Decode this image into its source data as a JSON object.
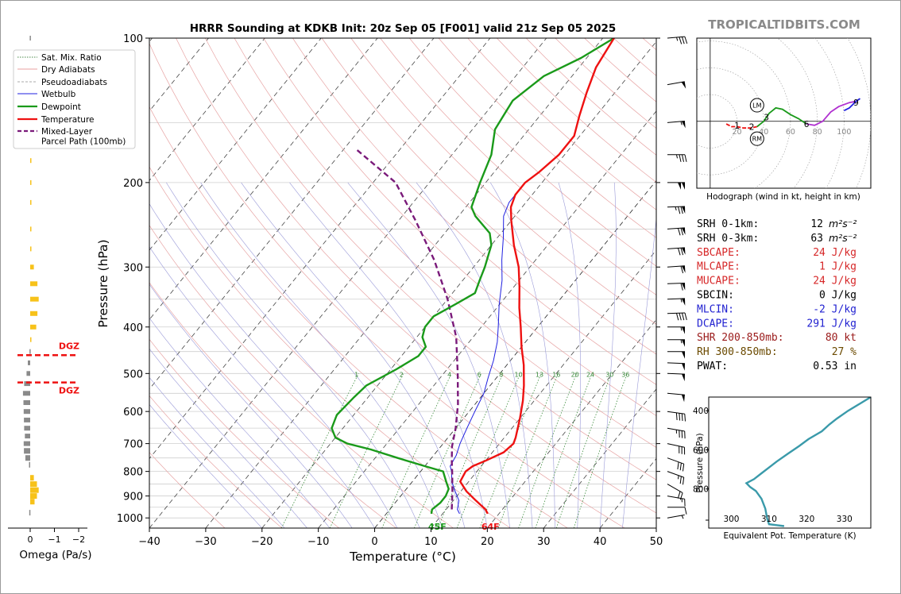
{
  "header": {
    "title": "HRRR Sounding at KDKB Init: 20z Sep 05 [F001] valid 21z Sep 05 2025",
    "brand": "TROPICALTIDBITS.COM"
  },
  "legend": {
    "items": [
      {
        "label": "Sat. Mix. Ratio",
        "color": "#4a8a4a",
        "style": "dotted"
      },
      {
        "label": "Dry Adiabats",
        "color": "#e8a0a0",
        "style": "solid"
      },
      {
        "label": "Pseudoadiabats",
        "color": "#aaaaaa",
        "style": "dashed"
      },
      {
        "label": "Wetbulb",
        "color": "#1f1fe0",
        "style": "solid"
      },
      {
        "label": "Dewpoint",
        "color": "#1a9a1a",
        "style": "solid"
      },
      {
        "label": "Temperature",
        "color": "#ee1111",
        "style": "solid"
      },
      {
        "label": "Mixed-Layer\nParcel Path (100mb)",
        "color": "#7a1a7a",
        "style": "dashed"
      }
    ]
  },
  "omega": {
    "xlabel": "Omega (Pa/s)",
    "ticks": [
      "0",
      "−1",
      "−2"
    ],
    "dgz_label": "DGZ",
    "dgz_top_hpa": 458,
    "dgz_bottom_hpa": 522,
    "xlim": [
      0.3,
      -2.2
    ],
    "bars": [
      {
        "p": 100,
        "v": 0.02
      },
      {
        "p": 120,
        "v": 0.02
      },
      {
        "p": 150,
        "v": 0.02
      },
      {
        "p": 180,
        "v": -0.01
      },
      {
        "p": 200,
        "v": -0.03
      },
      {
        "p": 220,
        "v": -0.04
      },
      {
        "p": 250,
        "v": -0.03
      },
      {
        "p": 275,
        "v": -0.03
      },
      {
        "p": 300,
        "v": -0.15
      },
      {
        "p": 325,
        "v": -0.3
      },
      {
        "p": 350,
        "v": -0.35
      },
      {
        "p": 375,
        "v": -0.3
      },
      {
        "p": 400,
        "v": -0.25
      },
      {
        "p": 425,
        "v": -0.05
      },
      {
        "p": 450,
        "v": 0.03
      },
      {
        "p": 475,
        "v": 0.1
      },
      {
        "p": 500,
        "v": 0.15
      },
      {
        "p": 525,
        "v": 0.25
      },
      {
        "p": 550,
        "v": 0.3
      },
      {
        "p": 575,
        "v": 0.28
      },
      {
        "p": 600,
        "v": 0.27
      },
      {
        "p": 625,
        "v": 0.26
      },
      {
        "p": 650,
        "v": 0.25
      },
      {
        "p": 675,
        "v": 0.22
      },
      {
        "p": 700,
        "v": 0.27
      },
      {
        "p": 725,
        "v": 0.26
      },
      {
        "p": 750,
        "v": 0.2
      },
      {
        "p": 775,
        "v": 0.05
      },
      {
        "p": 825,
        "v": -0.15
      },
      {
        "p": 850,
        "v": -0.28
      },
      {
        "p": 875,
        "v": -0.35
      },
      {
        "p": 900,
        "v": -0.28
      },
      {
        "p": 925,
        "v": -0.18
      },
      {
        "p": 975,
        "v": 0.04
      }
    ]
  },
  "chart_data": [
    {
      "type": "line",
      "title": "HRRR Sounding at KDKB Init: 20z Sep 05 [F001] valid 21z Sep 05 2025",
      "xlabel": "Temperature (°C)",
      "ylabel": "Pressure (hPa)",
      "xlim": [
        -40,
        50
      ],
      "ylim": [
        1050,
        100
      ],
      "xticks": [
        -40,
        -30,
        -20,
        -10,
        0,
        10,
        20,
        30,
        40,
        50
      ],
      "yticks": [
        100,
        200,
        300,
        400,
        500,
        600,
        700,
        800,
        900,
        1000
      ],
      "y_scale": "log",
      "skew": "skew-T",
      "mix_ratio_labels": [
        "1",
        "2",
        "4",
        "6",
        "8",
        "10",
        "13",
        "16",
        "20",
        "24",
        "30",
        "36"
      ],
      "surface_labels": {
        "temperature": "64F",
        "dewpoint": "45F"
      },
      "series": [
        {
          "name": "Temperature",
          "color": "#ee1111",
          "points": [
            [
              18.0,
              980
            ],
            [
              17.0,
              960
            ],
            [
              14.0,
              920
            ],
            [
              11.0,
              880
            ],
            [
              8.5,
              840
            ],
            [
              8.0,
              800
            ],
            [
              8.5,
              780
            ],
            [
              10.0,
              760
            ],
            [
              12.0,
              730
            ],
            [
              12.5,
              700
            ],
            [
              12.0,
              680
            ],
            [
              10.0,
              620
            ],
            [
              8.0,
              570
            ],
            [
              6.0,
              530
            ],
            [
              3.0,
              480
            ],
            [
              0.0,
              440
            ],
            [
              -3.0,
              400
            ],
            [
              -6.0,
              365
            ],
            [
              -9.0,
              330
            ],
            [
              -12.0,
              300
            ],
            [
              -16.0,
              270
            ],
            [
              -20.0,
              240
            ],
            [
              -22.0,
              225
            ],
            [
              -23.0,
              212
            ],
            [
              -23.0,
              200
            ],
            [
              -22.0,
              190
            ],
            [
              -21.0,
              175
            ],
            [
              -21.0,
              160
            ],
            [
              -23.0,
              145
            ],
            [
              -25.0,
              130
            ],
            [
              -27.0,
              115
            ],
            [
              -28.0,
              100
            ]
          ]
        },
        {
          "name": "Dewpoint",
          "color": "#1a9a1a",
          "points": [
            [
              8.0,
              980
            ],
            [
              7.5,
              960
            ],
            [
              8.0,
              930
            ],
            [
              8.0,
              900
            ],
            [
              7.5,
              870
            ],
            [
              6.0,
              840
            ],
            [
              4.0,
              800
            ],
            [
              0.0,
              780
            ],
            [
              -6.0,
              750
            ],
            [
              -12.0,
              720
            ],
            [
              -17.0,
              700
            ],
            [
              -20.0,
              680
            ],
            [
              -22.0,
              650
            ],
            [
              -23.0,
              610
            ],
            [
              -22.5,
              560
            ],
            [
              -22.0,
              530
            ],
            [
              -19.0,
              490
            ],
            [
              -17.0,
              460
            ],
            [
              -17.0,
              440
            ],
            [
              -19.0,
              420
            ],
            [
              -20.0,
              400
            ],
            [
              -20.0,
              380
            ],
            [
              -18.0,
              360
            ],
            [
              -16.0,
              340
            ],
            [
              -17.0,
              320
            ],
            [
              -18.0,
              300
            ],
            [
              -20.0,
              270
            ],
            [
              -22.0,
              255
            ],
            [
              -27.0,
              235
            ],
            [
              -29.0,
              225
            ],
            [
              -31.0,
              200
            ],
            [
              -33.0,
              175
            ],
            [
              -36.0,
              155
            ],
            [
              -37.0,
              135
            ],
            [
              -35.0,
              120
            ],
            [
              -31.0,
              110
            ],
            [
              -28.0,
              100
            ]
          ]
        },
        {
          "name": "Wetbulb",
          "color": "#1f1fe0",
          "points": [
            [
              13.0,
              980
            ],
            [
              12.0,
              960
            ],
            [
              11.0,
              920
            ],
            [
              9.0,
              880
            ],
            [
              7.0,
              840
            ],
            [
              5.5,
              800
            ],
            [
              4.5,
              780
            ],
            [
              4.0,
              740
            ],
            [
              3.0,
              700
            ],
            [
              2.0,
              650
            ],
            [
              1.0,
              600
            ],
            [
              0.0,
              550
            ],
            [
              -1.5,
              510
            ],
            [
              -3.0,
              470
            ],
            [
              -5.0,
              430
            ],
            [
              -7.0,
              400
            ],
            [
              -10.0,
              360
            ],
            [
              -13.0,
              320
            ],
            [
              -16.0,
              290
            ],
            [
              -19.0,
              260
            ],
            [
              -22.0,
              235
            ],
            [
              -23.0,
              220
            ],
            [
              -23.0,
              200
            ],
            [
              -22.0,
              190
            ],
            [
              -21.0,
              175
            ],
            [
              -21.0,
              160
            ],
            [
              -23.0,
              145
            ],
            [
              -25.0,
              130
            ],
            [
              -27.0,
              115
            ],
            [
              -28.0,
              100
            ]
          ]
        },
        {
          "name": "Mixed-Layer Parcel Path (100mb)",
          "color": "#7a1a7a",
          "points": [
            [
              11.0,
              960
            ],
            [
              8.5,
              880
            ],
            [
              6.0,
              810
            ],
            [
              4.0,
              760
            ],
            [
              2.0,
              710
            ],
            [
              0.0,
              650
            ],
            [
              -3.0,
              580
            ],
            [
              -7.5,
              500
            ],
            [
              -13.0,
              420
            ],
            [
              -20.0,
              350
            ],
            [
              -28.0,
              290
            ],
            [
              -37.0,
              240
            ],
            [
              -46.0,
              200
            ],
            [
              -58.0,
              170
            ]
          ]
        }
      ]
    },
    {
      "type": "line",
      "title": "Hodograph (wind in kt, height in km)",
      "xlim": [
        -10,
        120
      ],
      "ylim": [
        -50,
        55
      ],
      "ring_labels": [
        "20",
        "40",
        "60",
        "80",
        "100"
      ],
      "markers": {
        "LM": [
          35,
          12
        ],
        "RM": [
          35,
          -13
        ]
      },
      "height_labels": [
        {
          "label": "1",
          "u": 20,
          "v": -3
        },
        {
          "label": "2",
          "u": 31,
          "v": -4
        },
        {
          "label": "3",
          "u": 42,
          "v": 3
        },
        {
          "label": "6",
          "u": 72,
          "v": -2
        },
        {
          "label": "9",
          "u": 109,
          "v": 14
        }
      ],
      "series": [
        {
          "name": "0-1 km",
          "color": "#ee1111",
          "points": [
            [
              12,
              -2
            ],
            [
              16,
              -4
            ],
            [
              20,
              -4
            ],
            [
              25,
              -5
            ],
            [
              30,
              -5
            ],
            [
              35,
              -4
            ]
          ]
        },
        {
          "name": "1-3 km",
          "color": "#1a9a1a",
          "points": [
            [
              35,
              -4
            ],
            [
              40,
              0
            ],
            [
              44,
              6
            ],
            [
              49,
              10
            ],
            [
              54,
              9
            ],
            [
              60,
              5
            ],
            [
              66,
              2
            ],
            [
              72,
              -2
            ]
          ]
        },
        {
          "name": "3-6 km",
          "color": "#b030d0",
          "points": [
            [
              72,
              -2
            ],
            [
              78,
              -3
            ],
            [
              84,
              0
            ],
            [
              90,
              7
            ],
            [
              96,
              11
            ],
            [
              104,
              14
            ],
            [
              109,
              15
            ]
          ]
        },
        {
          "name": "6-9 km",
          "color": "#2020e0",
          "points": [
            [
              100,
              8
            ],
            [
              104,
              10
            ],
            [
              109,
              15
            ],
            [
              112,
              17
            ]
          ]
        }
      ]
    },
    {
      "type": "line",
      "title": "",
      "xlabel": "Equivalent Pot. Temperature (K)",
      "ylabel": "Pressure (hPa)",
      "xlim": [
        294,
        337
      ],
      "ylim": [
        1000,
        330
      ],
      "xticks": [
        300,
        310,
        320,
        330
      ],
      "yticks": [
        400,
        600,
        800
      ],
      "series": [
        {
          "name": "Theta-e",
          "color": "#3a9aaa",
          "points": [
            [
              314,
              990
            ],
            [
              312,
              985
            ],
            [
              310,
              980
            ],
            [
              309.5,
              950
            ],
            [
              309,
              900
            ],
            [
              308,
              850
            ],
            [
              306.5,
              810
            ],
            [
              305,
              790
            ],
            [
              304,
              770
            ],
            [
              306,
              750
            ],
            [
              308,
              720
            ],
            [
              310,
              690
            ],
            [
              312,
              660
            ],
            [
              315,
              620
            ],
            [
              318,
              580
            ],
            [
              320.5,
              545
            ],
            [
              324,
              505
            ],
            [
              326,
              470
            ],
            [
              328,
              440
            ],
            [
              331,
              400
            ],
            [
              334,
              365
            ],
            [
              337,
              330
            ]
          ]
        }
      ]
    }
  ],
  "stats": [
    {
      "label": "SRH 0-1km:",
      "value": "12",
      "unit": "m²s⁻²",
      "color": "#000000"
    },
    {
      "label": "SRH 0-3km:",
      "value": "63",
      "unit": "m²s⁻²",
      "color": "#000000"
    },
    {
      "label": "SBCAPE:",
      "value": "24 J/kg",
      "unit": "",
      "color": "#d62728"
    },
    {
      "label": "MLCAPE:",
      "value": "1 J/kg",
      "unit": "",
      "color": "#d62728"
    },
    {
      "label": "MUCAPE:",
      "value": "24 J/kg",
      "unit": "",
      "color": "#d62728"
    },
    {
      "label": "SBCIN:",
      "value": "0 J/kg",
      "unit": "",
      "color": "#000000"
    },
    {
      "label": "MLCIN:",
      "value": "-2 J/kg",
      "unit": "",
      "color": "#1f1fd0"
    },
    {
      "label": "DCAPE:",
      "value": "291 J/kg",
      "unit": "",
      "color": "#1f1fd0"
    },
    {
      "label": "SHR 200-850mb:",
      "value": "80 kt",
      "unit": "",
      "color": "#9a1a1a"
    },
    {
      "label": "RH 300-850mb:",
      "value": "27 %",
      "unit": "",
      "color": "#6b4a00"
    },
    {
      "label": "PWAT:",
      "value": "0.53 in",
      "unit": "",
      "color": "#000000"
    }
  ],
  "winds": [
    {
      "p": 100,
      "speed": 35,
      "dir": 265
    },
    {
      "p": 125,
      "speed": 50,
      "dir": 260
    },
    {
      "p": 150,
      "speed": 55,
      "dir": 265
    },
    {
      "p": 175,
      "speed": 35,
      "dir": 270
    },
    {
      "p": 200,
      "speed": 100,
      "dir": 270
    },
    {
      "p": 225,
      "speed": 75,
      "dir": 268
    },
    {
      "p": 250,
      "speed": 70,
      "dir": 266
    },
    {
      "p": 275,
      "speed": 70,
      "dir": 266
    },
    {
      "p": 300,
      "speed": 60,
      "dir": 266
    },
    {
      "p": 325,
      "speed": 60,
      "dir": 268
    },
    {
      "p": 350,
      "speed": 55,
      "dir": 268
    },
    {
      "p": 375,
      "speed": 40,
      "dir": 268
    },
    {
      "p": 400,
      "speed": 55,
      "dir": 270
    },
    {
      "p": 425,
      "speed": 55,
      "dir": 270
    },
    {
      "p": 450,
      "speed": 50,
      "dir": 270
    },
    {
      "p": 475,
      "speed": 50,
      "dir": 272
    },
    {
      "p": 500,
      "speed": 50,
      "dir": 272
    },
    {
      "p": 550,
      "speed": 50,
      "dir": 275
    },
    {
      "p": 600,
      "speed": 40,
      "dir": 278
    },
    {
      "p": 650,
      "speed": 35,
      "dir": 280
    },
    {
      "p": 700,
      "speed": 30,
      "dir": 282
    },
    {
      "p": 750,
      "speed": 30,
      "dir": 290
    },
    {
      "p": 800,
      "speed": 25,
      "dir": 290
    },
    {
      "p": 850,
      "speed": 20,
      "dir": 300
    },
    {
      "p": 900,
      "speed": 15,
      "dir": 280
    },
    {
      "p": 950,
      "speed": 10,
      "dir": 270
    },
    {
      "p": 1000,
      "speed": 5,
      "dir": 260
    }
  ]
}
